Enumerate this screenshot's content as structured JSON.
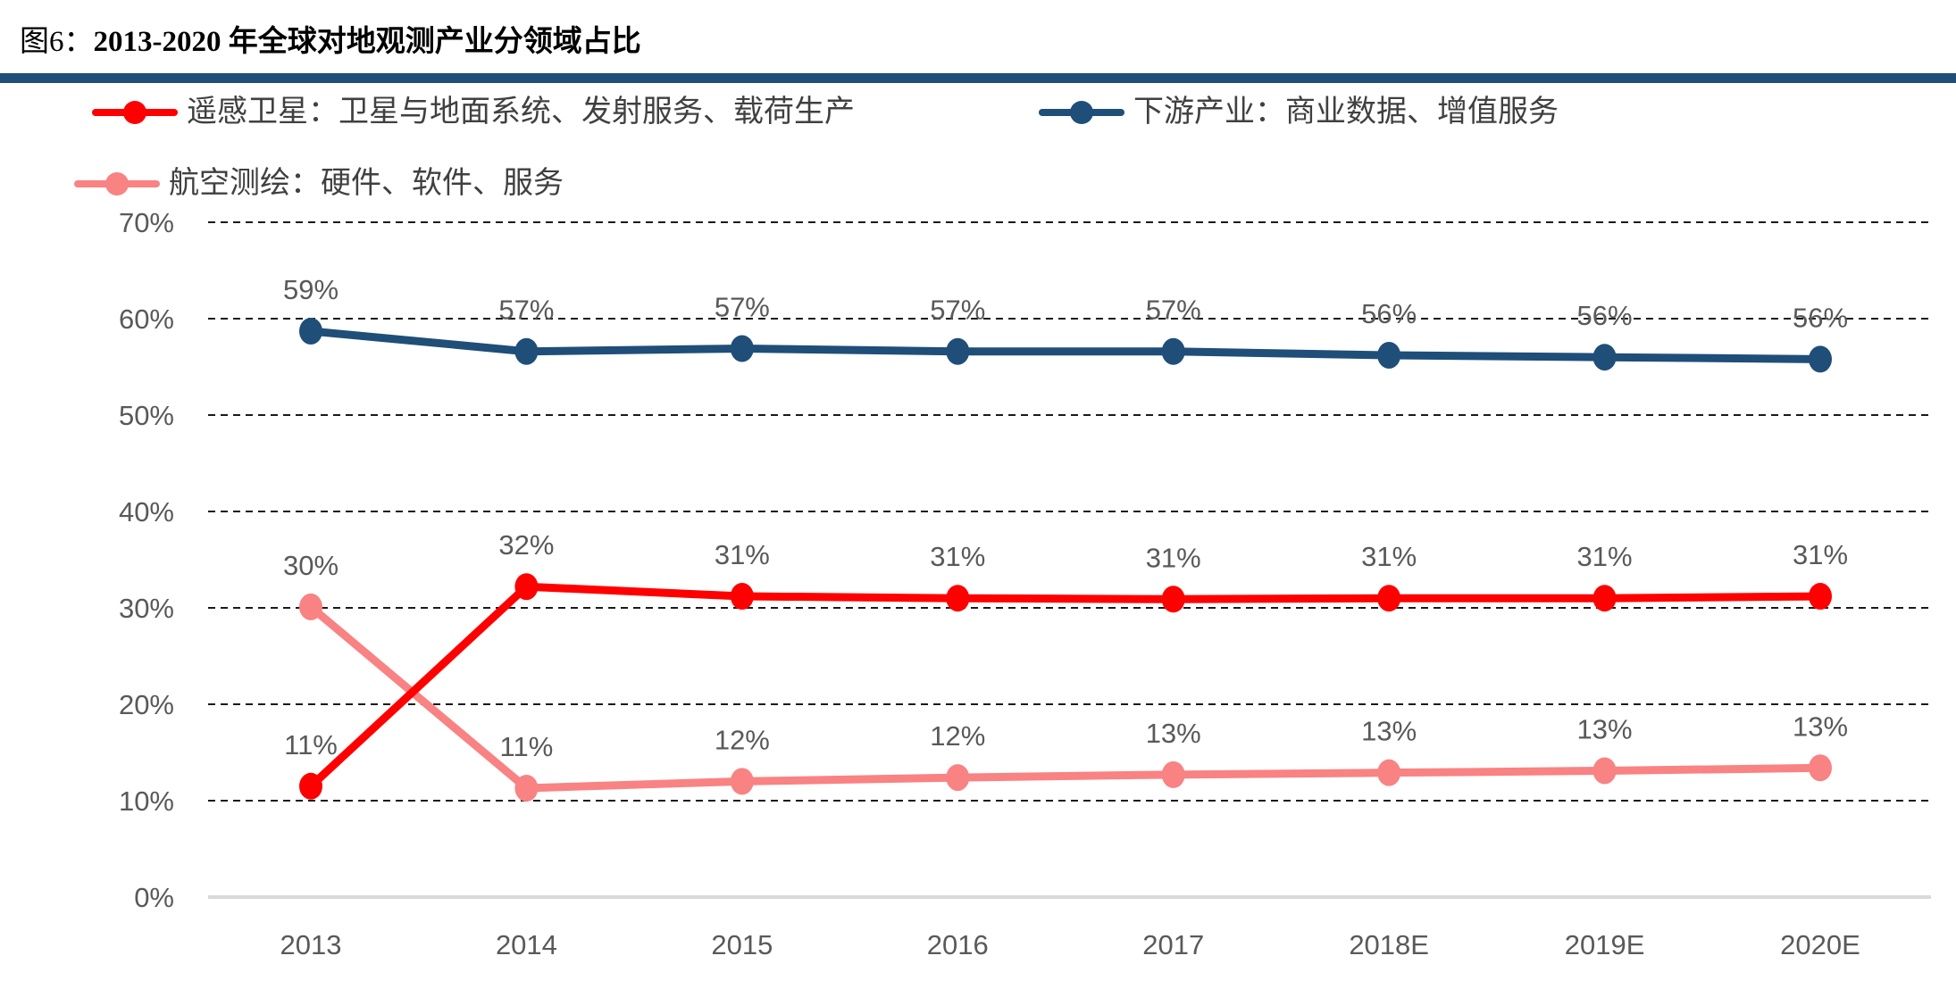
{
  "header": {
    "label": "图6：",
    "title": "2013-2020 年全球对地观测产业分领域占比"
  },
  "colors": {
    "accent_bar": "#1F4E79",
    "remote_sensing_red": "#FE0000",
    "downstream_blue": "#1F4E79",
    "aerial_survey_pink": "#F98283",
    "grid_line": "#1a1a1a",
    "zero_axis": "#D9D9D9",
    "tick_text": "#595959",
    "legend_text": "#404040"
  },
  "chart_data": {
    "type": "line",
    "title": "2013-2020 年全球对地观测产业分领域占比",
    "categories": [
      "2013",
      "2014",
      "2015",
      "2016",
      "2017",
      "2018E",
      "2019E",
      "2020E"
    ],
    "y_ticks": [
      "0%",
      "10%",
      "20%",
      "30%",
      "40%",
      "50%",
      "60%",
      "70%"
    ],
    "ylim": [
      0,
      70
    ],
    "grid": "horizontal-dashed",
    "legend_position": "top-left-two-rows",
    "series": [
      {
        "key": "remote-sensing",
        "name": "遥感卫星：卫星与地面系统、发射服务、载荷生产",
        "color": "#FE0000",
        "values": [
          11,
          32,
          31,
          31,
          31,
          31,
          31,
          31
        ],
        "plot_values": [
          11.5,
          32.2,
          31.2,
          31.0,
          30.9,
          31.0,
          31.0,
          31.2
        ],
        "data_labels": [
          "11%",
          "32%",
          "31%",
          "31%",
          "31%",
          "31%",
          "31%",
          "31%"
        ]
      },
      {
        "key": "downstream",
        "name": "下游产业：商业数据、增值服务",
        "color": "#1F4E79",
        "values": [
          59,
          57,
          57,
          57,
          57,
          56,
          56,
          56
        ],
        "plot_values": [
          58.7,
          56.6,
          56.9,
          56.6,
          56.6,
          56.2,
          56.0,
          55.8
        ],
        "data_labels": [
          "59%",
          "57%",
          "57%",
          "57%",
          "57%",
          "56%",
          "56%",
          "56%"
        ]
      },
      {
        "key": "aerial-survey",
        "name": "航空测绘：硬件、软件、服务",
        "color": "#F98283",
        "values": [
          30,
          11,
          12,
          12,
          13,
          13,
          13,
          13
        ],
        "plot_values": [
          30.1,
          11.3,
          12.0,
          12.4,
          12.7,
          12.9,
          13.1,
          13.4
        ],
        "data_labels": [
          "30%",
          "11%",
          "12%",
          "12%",
          "13%",
          "13%",
          "13%",
          "13%"
        ]
      }
    ]
  }
}
